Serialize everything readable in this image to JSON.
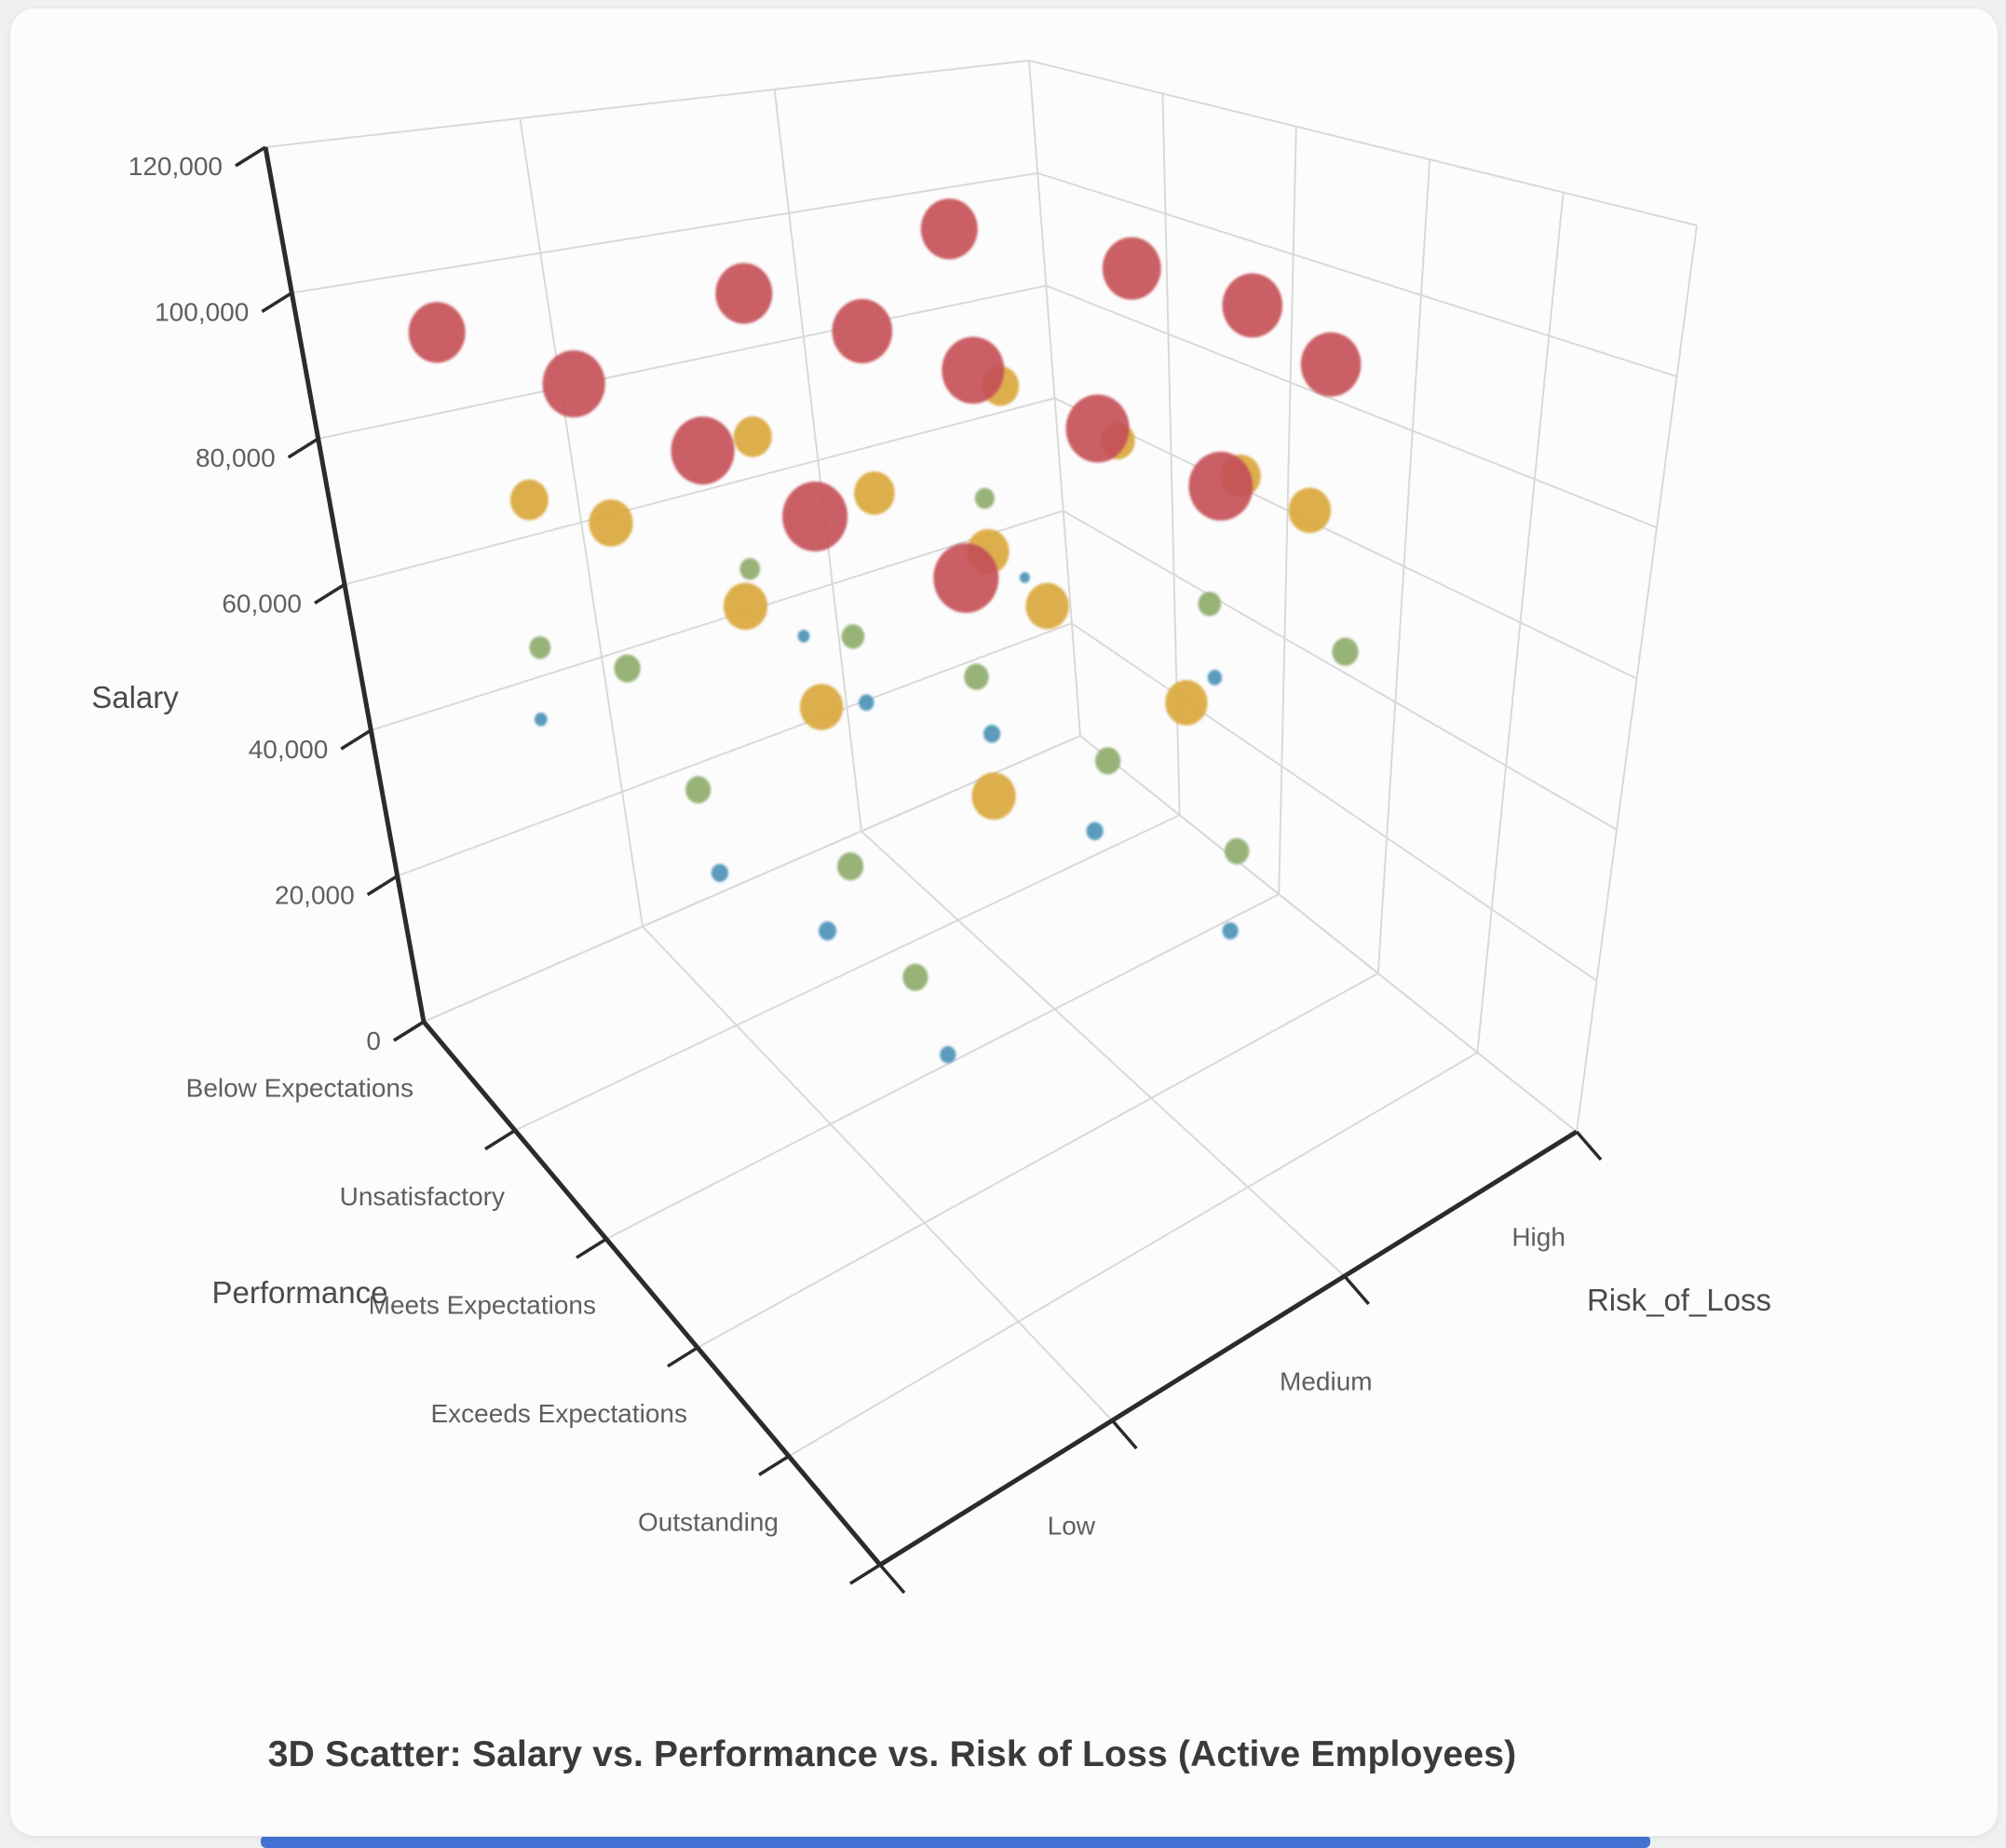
{
  "title": "3D Scatter: Salary vs. Performance vs. Risk of Loss (Active Employees)",
  "axes": {
    "salary": {
      "label": "Salary",
      "tick_labels": [
        "0",
        "20,000",
        "40,000",
        "60,000",
        "80,000",
        "100,000",
        "120,000"
      ],
      "tick_values": [
        0,
        20000,
        40000,
        60000,
        80000,
        100000,
        120000
      ],
      "min": 0,
      "max": 120000
    },
    "performance": {
      "label": "Performance",
      "categories": [
        "Below Expectations",
        "Unsatisfactory",
        "Meets Expectations",
        "Exceeds Expectations",
        "Outstanding"
      ]
    },
    "risk": {
      "label": "Risk_of_Loss",
      "categories": [
        "Low",
        "Medium",
        "High"
      ]
    }
  },
  "colors": {
    "band_high": "#C65159",
    "band_upper_mid": "#DAA83C",
    "band_lower_mid": "#8EAD6E",
    "band_low": "#4D92B8",
    "axis_line": "#2b2b2b",
    "grid_line": "#d9d9da",
    "tick_text": "#5f5f5f",
    "axis_title_text": "#4a4a4a",
    "title_text": "#3a3a3a",
    "card_background": "#fcfcfd",
    "page_background": "#eef0f2",
    "window_edge": "#4472d4"
  },
  "chart_data": {
    "type": "scatter",
    "projection": "3d",
    "x_axis": "Performance",
    "y_axis": "Risk_of_Loss",
    "z_axis": "Salary",
    "z_range": [
      0,
      120000
    ],
    "size_encoding": "salary",
    "color_encoding": "salary band: >=90000 red, 65000-89999 yellow, 52000-64999 green, <52000 blue",
    "grid": true,
    "points": [
      {
        "performance": "Below Expectations",
        "risk": "Low",
        "salary": 97000
      },
      {
        "performance": "Unsatisfactory",
        "risk": "Low",
        "salary": 104000
      },
      {
        "performance": "Meets Expectations",
        "risk": "Low",
        "salary": 105000
      },
      {
        "performance": "Exceeds Expectations",
        "risk": "Low",
        "salary": 107000
      },
      {
        "performance": "Outstanding",
        "risk": "Low",
        "salary": 107000
      },
      {
        "performance": "Below Expectations",
        "risk": "Medium",
        "salary": 97000
      },
      {
        "performance": "Unsatisfactory",
        "risk": "Medium",
        "salary": 101000
      },
      {
        "performance": "Meets Expectations",
        "risk": "Medium",
        "salary": 104000
      },
      {
        "performance": "Exceeds Expectations",
        "risk": "Medium",
        "salary": 105000
      },
      {
        "performance": "Outstanding",
        "risk": "Medium",
        "salary": 106000
      },
      {
        "performance": "Below Expectations",
        "risk": "High",
        "salary": 97000
      },
      {
        "performance": "Unsatisfactory",
        "risk": "High",
        "salary": 99000
      },
      {
        "performance": "Meets Expectations",
        "risk": "High",
        "salary": 101000
      },
      {
        "performance": "Exceeds Expectations",
        "risk": "High",
        "salary": 101000
      },
      {
        "performance": "Below Expectations",
        "risk": "Low",
        "salary": 75000
      },
      {
        "performance": "Unsatisfactory",
        "risk": "Low",
        "salary": 82000
      },
      {
        "performance": "Meets Expectations",
        "risk": "Low",
        "salary": 82000
      },
      {
        "performance": "Exceeds Expectations",
        "risk": "Low",
        "salary": 81000
      },
      {
        "performance": "Outstanding",
        "risk": "Low",
        "salary": 82000
      },
      {
        "performance": "Below Expectations",
        "risk": "Medium",
        "salary": 75000
      },
      {
        "performance": "Unsatisfactory",
        "risk": "Medium",
        "salary": 78000
      },
      {
        "performance": "Meets Expectations",
        "risk": "Medium",
        "salary": 80000
      },
      {
        "performance": "Exceeds Expectations",
        "risk": "Medium",
        "salary": 81000
      },
      {
        "performance": "Outstanding",
        "risk": "Medium",
        "salary": 80000
      },
      {
        "performance": "Below Expectations",
        "risk": "High",
        "salary": 74000
      },
      {
        "performance": "Unsatisfactory",
        "risk": "High",
        "salary": 71000
      },
      {
        "performance": "Meets Expectations",
        "risk": "High",
        "salary": 77000
      },
      {
        "performance": "Exceeds Expectations",
        "risk": "High",
        "salary": 80000
      },
      {
        "performance": "Below Expectations",
        "risk": "Low",
        "salary": 55000
      },
      {
        "performance": "Unsatisfactory",
        "risk": "Low",
        "salary": 61000
      },
      {
        "performance": "Meets Expectations",
        "risk": "Low",
        "salary": 60000
      },
      {
        "performance": "Exceeds Expectations",
        "risk": "Low",
        "salary": 61000
      },
      {
        "performance": "Outstanding",
        "risk": "Low",
        "salary": 60000
      },
      {
        "performance": "Below Expectations",
        "risk": "Medium",
        "salary": 54000
      },
      {
        "performance": "Unsatisfactory",
        "risk": "Medium",
        "salary": 57000
      },
      {
        "performance": "Meets Expectations",
        "risk": "Medium",
        "salary": 59000
      },
      {
        "performance": "Exceeds Expectations",
        "risk": "Medium",
        "salary": 60000
      },
      {
        "performance": "Outstanding",
        "risk": "Medium",
        "salary": 59000
      },
      {
        "performance": "Below Expectations",
        "risk": "High",
        "salary": 53000
      },
      {
        "performance": "Meets Expectations",
        "risk": "High",
        "salary": 57000
      },
      {
        "performance": "Exceeds Expectations",
        "risk": "High",
        "salary": 61000
      },
      {
        "performance": "Below Expectations",
        "risk": "Low",
        "salary": 45000
      },
      {
        "performance": "Meets Expectations",
        "risk": "Low",
        "salary": 50000
      },
      {
        "performance": "Exceeds Expectations",
        "risk": "Low",
        "salary": 51000
      },
      {
        "performance": "Outstanding",
        "risk": "Low",
        "salary": 49000
      },
      {
        "performance": "Below Expectations",
        "risk": "Medium",
        "salary": 44000
      },
      {
        "performance": "Unsatisfactory",
        "risk": "Medium",
        "salary": 48000
      },
      {
        "performance": "Meets Expectations",
        "risk": "Medium",
        "salary": 50000
      },
      {
        "performance": "Exceeds Expectations",
        "risk": "Medium",
        "salary": 50000
      },
      {
        "performance": "Outstanding",
        "risk": "Medium",
        "salary": 49000
      },
      {
        "performance": "Below Expectations",
        "risk": "High",
        "salary": 42000
      },
      {
        "performance": "Meets Expectations",
        "risk": "High",
        "salary": 47000
      }
    ]
  }
}
